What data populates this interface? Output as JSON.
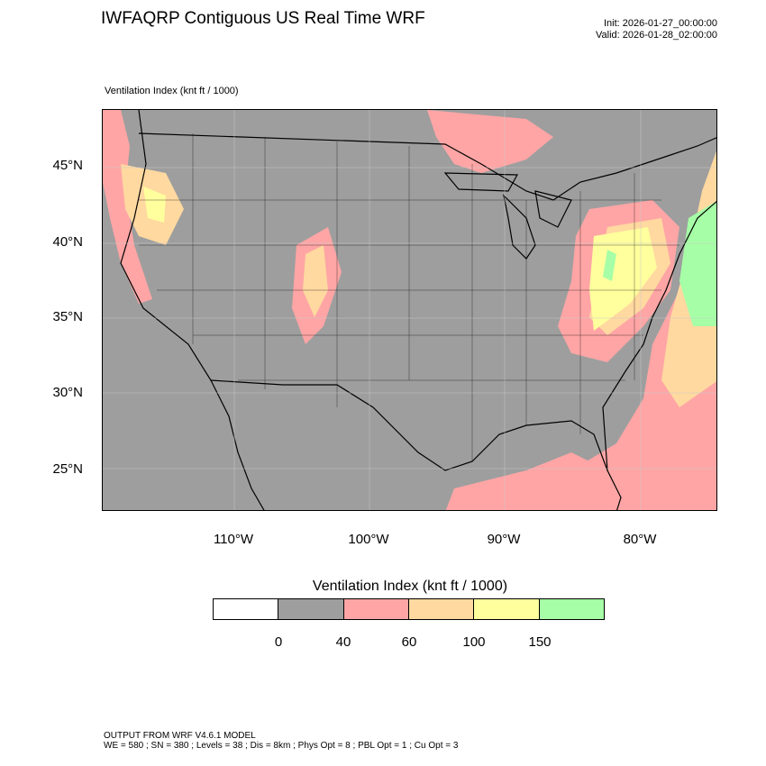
{
  "header": {
    "title": "IWFAQRP Contiguous US Real Time WRF",
    "init": "Init: 2026-01-27_00:00:00",
    "valid": "Valid: 2026-01-28_02:00:00"
  },
  "map": {
    "field_label": "Ventilation Index   (knt ft / 1000)",
    "lat_labels": [
      "45°N",
      "40°N",
      "35°N",
      "30°N",
      "25°N"
    ],
    "lon_labels": [
      "110°W",
      "100°W",
      "90°W",
      "80°W"
    ]
  },
  "legend": {
    "title": "Ventilation Index  (knt ft / 1000)",
    "colors": [
      "#ffffff",
      "#9e9e9e",
      "#ffa5a5",
      "#ffd9a0",
      "#ffff9e",
      "#a6ffa6"
    ],
    "tick_labels": [
      "0",
      "40",
      "60",
      "100",
      "150"
    ]
  },
  "footer": {
    "line1": "OUTPUT FROM WRF V4.6.1 MODEL",
    "line2": "WE = 580 ; SN = 380 ; Levels = 38 ; Dis = 8km ; Phys Opt = 8 ; PBL Opt = 1 ; Cu Opt = 3"
  }
}
